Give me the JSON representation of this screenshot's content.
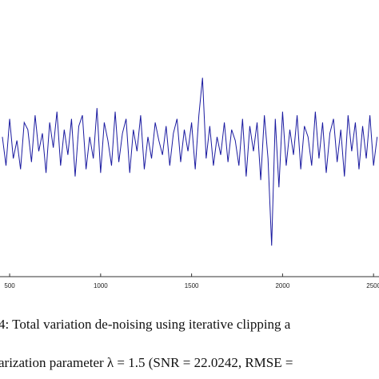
{
  "chart_data": {
    "type": "line",
    "x": [
      460,
      480,
      500,
      520,
      540,
      560,
      580,
      600,
      620,
      640,
      660,
      680,
      700,
      720,
      740,
      760,
      780,
      800,
      820,
      840,
      860,
      880,
      900,
      920,
      940,
      960,
      980,
      1000,
      1020,
      1040,
      1060,
      1080,
      1100,
      1120,
      1140,
      1160,
      1180,
      1200,
      1220,
      1240,
      1260,
      1280,
      1300,
      1320,
      1340,
      1360,
      1380,
      1400,
      1420,
      1440,
      1460,
      1480,
      1500,
      1520,
      1540,
      1560,
      1580,
      1600,
      1620,
      1640,
      1660,
      1680,
      1700,
      1720,
      1740,
      1760,
      1780,
      1800,
      1820,
      1840,
      1860,
      1880,
      1900,
      1920,
      1940,
      1960,
      1980,
      2000,
      2020,
      2040,
      2060,
      2080,
      2100,
      2120,
      2140,
      2160,
      2180,
      2200,
      2220,
      2240,
      2260,
      2280,
      2300,
      2320,
      2340,
      2360,
      2380,
      2400,
      2420,
      2440,
      2460,
      2480,
      2500,
      2520
    ],
    "series": [
      {
        "color": "#1a1aa0",
        "values": [
          0.1,
          -0.3,
          0.35,
          -0.2,
          0.05,
          -0.35,
          0.3,
          0.2,
          -0.25,
          0.4,
          -0.1,
          0.15,
          -0.4,
          0.3,
          -0.05,
          0.45,
          -0.3,
          0.2,
          -0.15,
          0.35,
          -0.45,
          0.25,
          0.4,
          -0.35,
          0.1,
          -0.2,
          0.5,
          -0.4,
          0.3,
          0.05,
          -0.3,
          0.45,
          -0.25,
          0.15,
          0.35,
          -0.4,
          0.2,
          -0.1,
          0.4,
          -0.35,
          0.1,
          -0.2,
          0.3,
          0.05,
          -0.15,
          0.25,
          -0.3,
          0.15,
          0.35,
          -0.25,
          0.2,
          -0.1,
          0.3,
          -0.35,
          0.4,
          0.92,
          -0.2,
          0.25,
          -0.3,
          0.1,
          -0.15,
          0.3,
          -0.25,
          0.2,
          0.05,
          -0.3,
          0.35,
          -0.45,
          0.25,
          -0.1,
          0.3,
          -0.5,
          0.4,
          -0.2,
          -1.41,
          0.35,
          -0.6,
          0.45,
          -0.3,
          0.2,
          -0.15,
          0.4,
          -0.35,
          0.25,
          0.1,
          -0.3,
          0.45,
          -0.2,
          0.3,
          -0.4,
          0.15,
          0.35,
          -0.25,
          0.2,
          -0.45,
          0.4,
          -0.1,
          0.3,
          -0.35,
          0.25,
          -0.2,
          0.4,
          -0.3,
          0.1
        ]
      }
    ],
    "xlim": [
      447,
      2530
    ],
    "ylim": [
      -1.84,
      2
    ],
    "xticks": [
      500,
      1000,
      1500,
      2000,
      2500
    ],
    "caption": [
      "4: Total variation de-noising using iterative clipping a",
      "arization parameter λ = 1.5 (SNR = 22.0242, RMSE ="
    ]
  }
}
